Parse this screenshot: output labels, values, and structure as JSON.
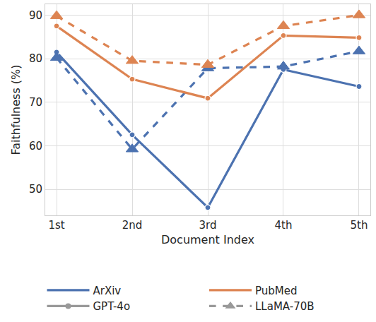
{
  "chart_data": {
    "type": "line",
    "xlabel": "Document Index",
    "ylabel": "Faithfulness (%)",
    "categories": [
      "1st",
      "2nd",
      "3rd",
      "4th",
      "5th"
    ],
    "ylim": [
      44,
      92.5
    ],
    "yticks": [
      50,
      60,
      70,
      80,
      90
    ],
    "grid": true,
    "legend": "bottom",
    "datasets": [
      {
        "name": "ArXiv",
        "color": "#4c72b0"
      },
      {
        "name": "PubMed",
        "color": "#dd8452"
      }
    ],
    "models": [
      {
        "name": "GPT-4o",
        "color": "#999999",
        "line_style": "solid",
        "marker": "circle"
      },
      {
        "name": "LLaMA-70B",
        "color": "#999999",
        "line_style": "dash",
        "marker": "triangle-up"
      }
    ],
    "series": [
      {
        "dataset": "ArXiv",
        "model": "GPT-4o",
        "values": [
          81.5,
          62.5,
          45.8,
          77.5,
          73.6
        ]
      },
      {
        "dataset": "ArXiv",
        "model": "LLaMA-70B",
        "values": [
          80.2,
          59.2,
          77.8,
          78.2,
          81.7
        ]
      },
      {
        "dataset": "PubMed",
        "model": "GPT-4o",
        "values": [
          87.5,
          75.3,
          70.9,
          85.3,
          84.8
        ]
      },
      {
        "dataset": "PubMed",
        "model": "LLaMA-70B",
        "values": [
          89.8,
          79.5,
          78.6,
          87.5,
          90.0
        ]
      }
    ]
  }
}
